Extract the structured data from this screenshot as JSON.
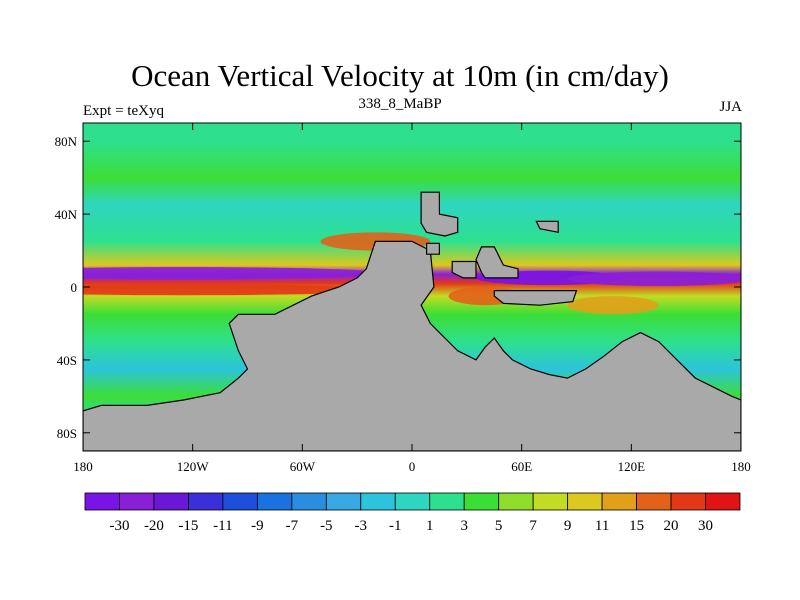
{
  "chart_data": {
    "type": "heatmap",
    "title": "Ocean Vertical Velocity at 10m (in cm/day)",
    "subtitle_left": "Expt = teXyq",
    "subtitle_center": "338_8_MaBP",
    "subtitle_right": "JJA",
    "x_ticks": [
      "180",
      "120W",
      "60W",
      "0",
      "60E",
      "120E",
      "180"
    ],
    "x_tick_values": [
      -180,
      -120,
      -60,
      0,
      60,
      120,
      180
    ],
    "y_ticks": [
      "80N",
      "40N",
      "0",
      "40S",
      "80S"
    ],
    "y_tick_values": [
      80,
      40,
      0,
      -40,
      -80
    ],
    "xlim": [
      -180,
      180
    ],
    "ylim": [
      -90,
      90
    ],
    "colorbar_labels": [
      "-30",
      "-20",
      "-15",
      "-11",
      "-9",
      "-7",
      "-5",
      "-3",
      "-1",
      "1",
      "3",
      "5",
      "7",
      "9",
      "11",
      "15",
      "20",
      "30"
    ],
    "colorbar_colors": [
      "#7a14e6",
      "#8a1fd8",
      "#6a18d6",
      "#3a2fd8",
      "#1e4fdc",
      "#1a72e0",
      "#2a8ee0",
      "#38a8e2",
      "#2cc4dc",
      "#2ed6c0",
      "#2ee08e",
      "#3cde36",
      "#8edc2c",
      "#c2dc24",
      "#dcc81e",
      "#e2a01a",
      "#e2621a",
      "#e23818",
      "#e01414"
    ],
    "land_color": "#a9a9a9",
    "field_bands": [
      {
        "lat": 80,
        "value": 3
      },
      {
        "lat": 60,
        "value": 5
      },
      {
        "lat": 45,
        "value": 1
      },
      {
        "lat": 25,
        "value": 3
      },
      {
        "lat": 12,
        "value": 11
      },
      {
        "lat": 7,
        "value": -20
      },
      {
        "lat": 2,
        "value": 30
      },
      {
        "lat": -5,
        "value": 9
      },
      {
        "lat": -15,
        "value": 5
      },
      {
        "lat": -30,
        "value": 3
      },
      {
        "lat": -45,
        "value": -1
      },
      {
        "lat": -60,
        "value": 5
      },
      {
        "lat": -75,
        "value": 1
      }
    ]
  }
}
